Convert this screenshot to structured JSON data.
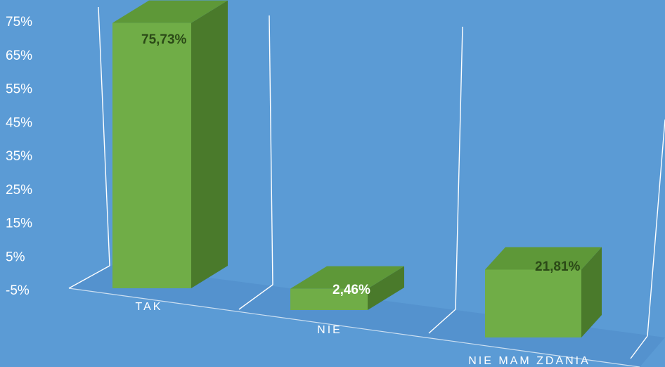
{
  "chart_data": {
    "type": "bar",
    "categories": [
      "TAK",
      "NIE",
      "NIE MAM ZDANIA"
    ],
    "values": [
      75.73,
      2.46,
      21.81
    ],
    "data_labels": [
      "75,73%",
      "2,46%",
      "21,81%"
    ],
    "ylim": [
      -5,
      75
    ],
    "y_ticks": [
      "-5%",
      "5%",
      "15%",
      "25%",
      "35%",
      "45%",
      "55%",
      "65%",
      "75%"
    ],
    "style": "3d-column",
    "grid": false,
    "legend": "none",
    "colors": {
      "background": "#5b9bd5",
      "bar_front": "#70ad47",
      "bar_top": "#5e9838",
      "bar_side": "#4a7a2b",
      "floor": "#4f8ac8",
      "wall_line": "#ffffff",
      "label_dark": "#2b4a17",
      "label_light": "#ffffff"
    }
  }
}
